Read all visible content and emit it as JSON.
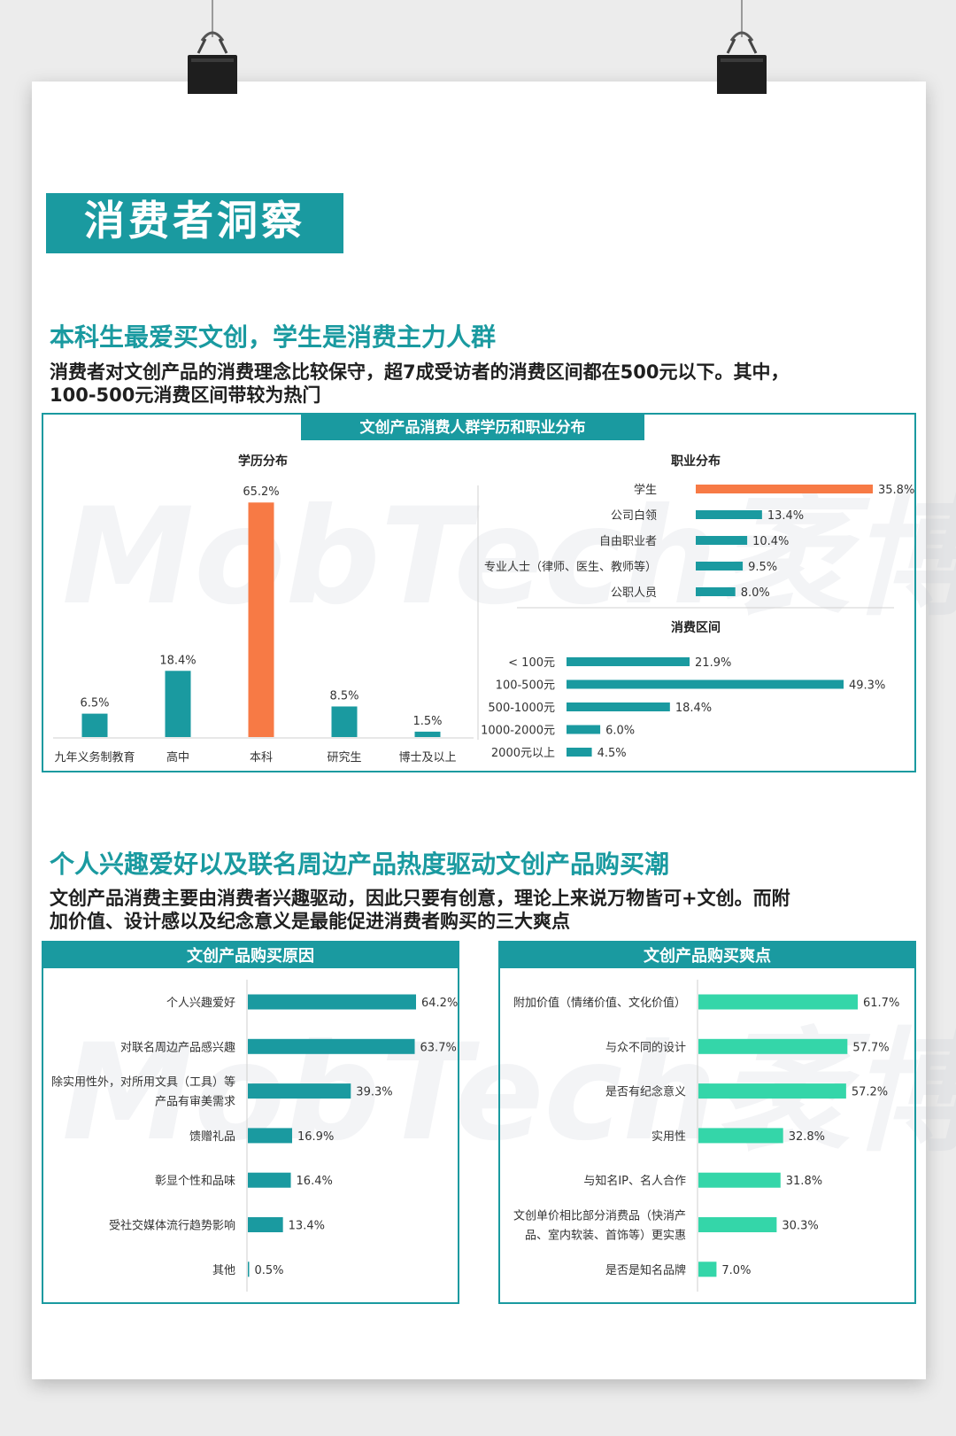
{
  "banner_title": "消费者洞察",
  "watermark": "MobTech袤博",
  "section1": {
    "heading": "本科生最爱买文创，学生是消费主力人群",
    "desc_line1": "消费者对文创产品的消费理念比较保守，超7成受访者的消费区间都在500元以下。其中，",
    "desc_line2": "100-500元消费区间带较为热门",
    "panel_title": "文创产品消费人群学历和职业分布"
  },
  "section2": {
    "heading": "个人兴趣爱好以及联名周边产品热度驱动文创产品购买潮",
    "desc_line1": "文创产品消费主要由消费者兴趣驱动，因此只要有创意，理论上来说万物皆可+文创。而附",
    "desc_line2": "加价值、设计感以及纪念意义是最能促进消费者购买的三大爽点"
  },
  "colors": {
    "teal": "#1a9aa0",
    "orange": "#f77a45",
    "mint": "#34d6a9",
    "banner": "#1a9aa0"
  },
  "chart_data": [
    {
      "id": "education",
      "type": "bar",
      "title": "学历分布",
      "categories": [
        "九年义务制教育",
        "高中",
        "本科",
        "研究生",
        "博士及以上"
      ],
      "values": [
        6.5,
        18.4,
        65.2,
        8.5,
        1.5
      ],
      "labels": [
        "6.5%",
        "18.4%",
        "65.2%",
        "8.5%",
        "1.5%"
      ],
      "highlight_index": 2,
      "ylim": [
        0,
        66
      ]
    },
    {
      "id": "occupation",
      "type": "bar",
      "orientation": "horizontal",
      "title": "职业分布",
      "categories": [
        "学生",
        "公司白领",
        "自由职业者",
        "专业人士（律师、医生、教师等）",
        "公职人员"
      ],
      "values": [
        35.8,
        13.4,
        10.4,
        9.5,
        8.0
      ],
      "labels": [
        "35.8%",
        "13.4%",
        "10.4%",
        "9.5%",
        "8.0%"
      ],
      "highlight_index": 0,
      "xlim": [
        0,
        35.8
      ]
    },
    {
      "id": "spending",
      "type": "bar",
      "orientation": "horizontal",
      "title": "消费区间",
      "categories": [
        "< 100元",
        "100-500元",
        "500-1000元",
        "1000-2000元",
        "2000元以上"
      ],
      "values": [
        21.9,
        49.3,
        18.4,
        6.0,
        4.5
      ],
      "labels": [
        "21.9%",
        "49.3%",
        "18.4%",
        "6.0%",
        "4.5%"
      ],
      "xlim": [
        0,
        49.3
      ]
    },
    {
      "id": "reasons",
      "type": "bar",
      "orientation": "horizontal",
      "title": "文创产品购买原因",
      "categories": [
        [
          "个人兴趣爱好"
        ],
        [
          "对联名周边产品感兴趣"
        ],
        [
          "除实用性外，对所用文具（工具）等",
          "产品有审美需求"
        ],
        [
          "馈赠礼品"
        ],
        [
          "彰显个性和品味"
        ],
        [
          "受社交媒体流行趋势影响"
        ],
        [
          "其他"
        ]
      ],
      "values": [
        64.2,
        63.7,
        39.3,
        16.9,
        16.4,
        13.4,
        0.5
      ],
      "labels": [
        "64.2%",
        "63.7%",
        "39.3%",
        "16.9%",
        "16.4%",
        "13.4%",
        "0.5%"
      ],
      "xlim": [
        0,
        64.2
      ]
    },
    {
      "id": "selling_points",
      "type": "bar",
      "orientation": "horizontal",
      "title": "文创产品购买爽点",
      "categories": [
        [
          "附加价值（情绪价值、文化价值）"
        ],
        [
          "与众不同的设计"
        ],
        [
          "是否有纪念意义"
        ],
        [
          "实用性"
        ],
        [
          "与知名IP、名人合作"
        ],
        [
          "文创单价相比部分消费品（快消产",
          "品、室内软装、首饰等）更实惠"
        ],
        [
          "是否是知名品牌"
        ]
      ],
      "values": [
        61.7,
        57.7,
        57.2,
        32.8,
        31.8,
        30.3,
        7.0
      ],
      "labels": [
        "61.7%",
        "57.7%",
        "57.2%",
        "32.8%",
        "31.8%",
        "30.3%",
        "7.0%"
      ],
      "xlim": [
        0,
        61.7
      ]
    }
  ]
}
